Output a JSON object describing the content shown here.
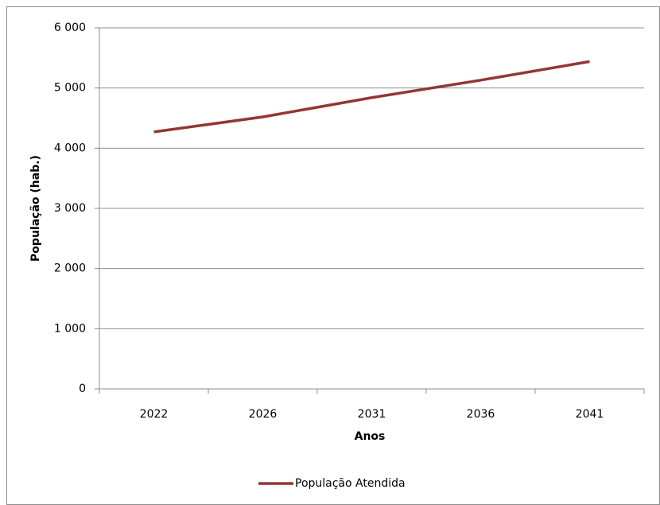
{
  "chart_data": {
    "type": "line",
    "categories": [
      "2022",
      "2026",
      "2031",
      "2036",
      "2041"
    ],
    "series": [
      {
        "name": "População Atendida",
        "color": "#943634",
        "values": [
          4270,
          4520,
          4840,
          5130,
          5440
        ]
      }
    ],
    "xlabel": "Anos",
    "ylabel": "População (hab.)",
    "ylim": [
      0,
      6000
    ],
    "yticks": [
      0,
      {
        "value": 1000,
        "label": "1 000"
      },
      {
        "value": 2000,
        "label": "2 000"
      },
      {
        "value": 3000,
        "label": "3 000"
      },
      {
        "value": 4000,
        "label": "4 000"
      },
      {
        "value": 5000,
        "label": "5 000"
      },
      {
        "value": 6000,
        "label": "6 000"
      }
    ],
    "grid": true,
    "legend": "bottom"
  }
}
